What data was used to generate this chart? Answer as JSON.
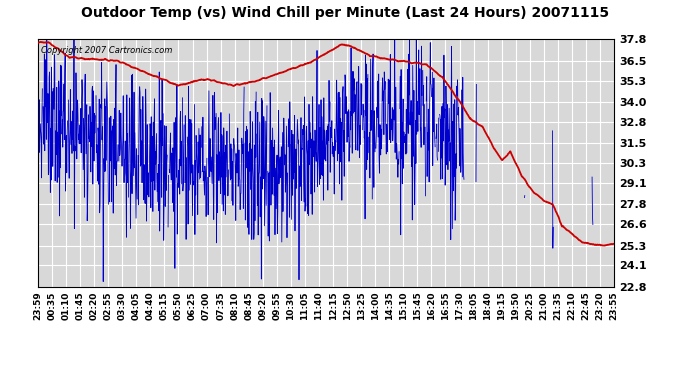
{
  "title": "Outdoor Temp (vs) Wind Chill per Minute (Last 24 Hours) 20071115",
  "copyright_text": "Copyright 2007 Cartronics.com",
  "ylabel_right": [
    "37.8",
    "36.5",
    "35.3",
    "34.0",
    "32.8",
    "31.5",
    "30.3",
    "29.1",
    "27.8",
    "26.6",
    "25.3",
    "24.1",
    "22.8"
  ],
  "yticks": [
    37.8,
    36.5,
    35.3,
    34.0,
    32.8,
    31.5,
    30.3,
    29.1,
    27.8,
    26.6,
    25.3,
    24.1,
    22.8
  ],
  "ylim": [
    22.8,
    37.8
  ],
  "xlim": [
    0,
    1439
  ],
  "x_tick_labels": [
    "23:59",
    "00:35",
    "01:10",
    "01:45",
    "02:20",
    "02:55",
    "03:30",
    "04:05",
    "04:40",
    "05:15",
    "05:50",
    "06:25",
    "07:00",
    "07:35",
    "08:10",
    "08:45",
    "09:20",
    "09:55",
    "10:30",
    "11:05",
    "11:40",
    "12:15",
    "12:50",
    "13:25",
    "14:00",
    "14:35",
    "15:10",
    "15:45",
    "16:20",
    "16:55",
    "17:30",
    "18:05",
    "18:40",
    "19:15",
    "19:50",
    "20:25",
    "21:00",
    "21:35",
    "22:10",
    "22:45",
    "23:20",
    "23:55"
  ],
  "bg_color": "#ffffff",
  "plot_bg_color": "#d8d8d8",
  "grid_color": "#ffffff",
  "red_line_color": "#cc0000",
  "blue_line_color": "#0000cc",
  "title_fontsize": 10,
  "tick_fontsize": 6.5,
  "copyright_fontsize": 6
}
